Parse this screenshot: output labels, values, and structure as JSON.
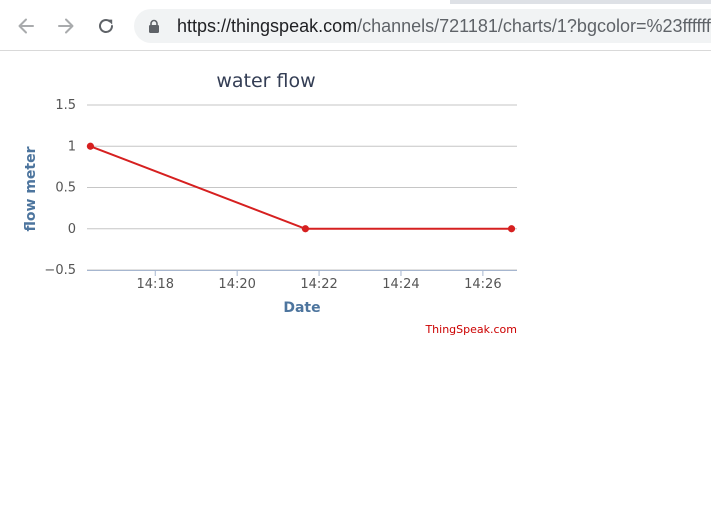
{
  "browser": {
    "url_scheme_host": "https://thingspeak.com",
    "url_path": "/channels/721181/charts/1?bgcolor=%23ffffff"
  },
  "chart_data": {
    "type": "line",
    "title": "water flow",
    "xlabel": "Date",
    "ylabel": "flow meter",
    "ylim": [
      -0.5,
      1.5
    ],
    "yticks": [
      {
        "value": 1.5,
        "label": "1.5"
      },
      {
        "value": 1,
        "label": "1"
      },
      {
        "value": 0.5,
        "label": "0.5"
      },
      {
        "value": 0,
        "label": "0"
      },
      {
        "value": -0.5,
        "label": "−0.5"
      }
    ],
    "xlim": [
      "14:16:20",
      "14:26:50"
    ],
    "xticks": [
      "14:18",
      "14:20",
      "14:22",
      "14:24",
      "14:26"
    ],
    "grid": true,
    "credit": "ThingSpeak.com",
    "series": [
      {
        "color": "#d62020",
        "points": [
          {
            "x": "14:16:25",
            "y": 1
          },
          {
            "x": "14:21:40",
            "y": 0
          },
          {
            "x": "14:26:42",
            "y": 0
          }
        ]
      }
    ]
  }
}
